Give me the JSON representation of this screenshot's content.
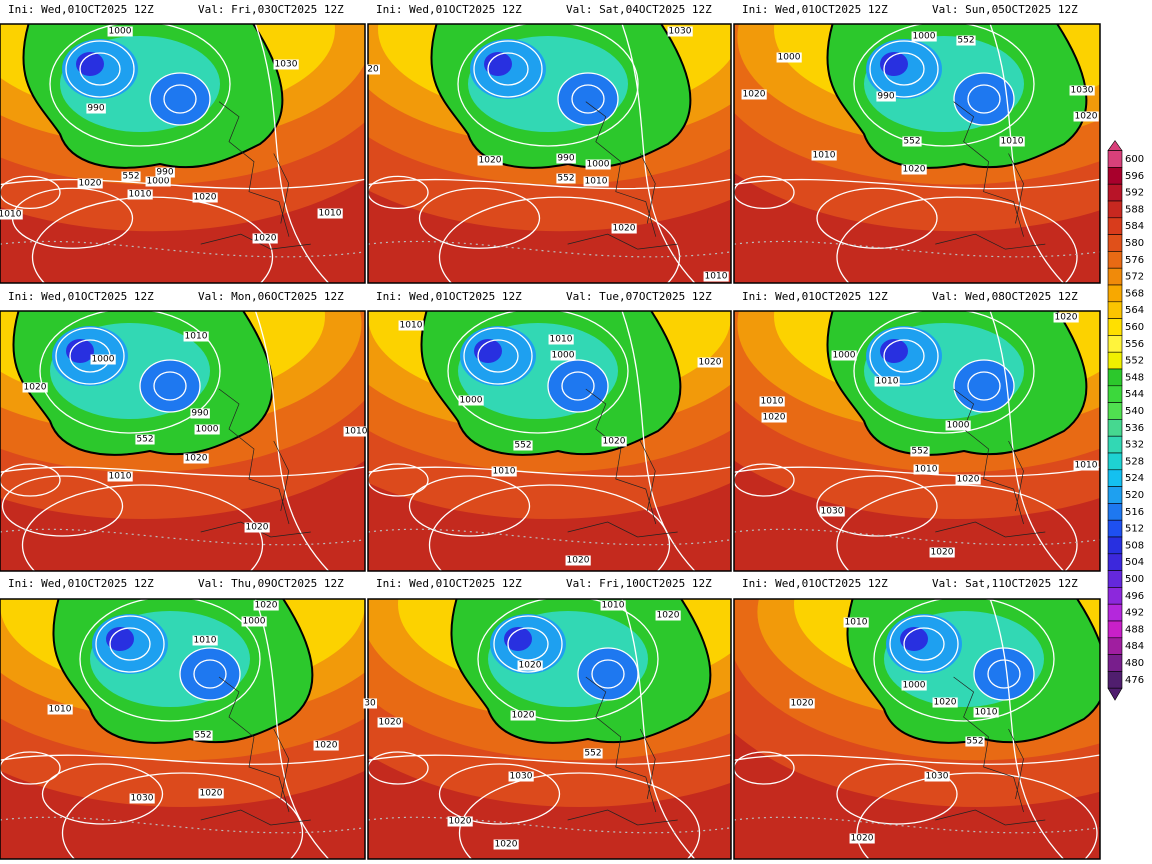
{
  "panels": [
    {
      "ini": "Ini: Wed,01OCT2025 12Z",
      "val": "Val: Fri,03OCT2025 12Z",
      "contour_labels": [
        "1000",
        "990",
        "552",
        "1000",
        "990",
        "1020",
        "1010",
        "1020",
        "1030",
        "1010",
        "1010",
        "1020"
      ]
    },
    {
      "ini": "Ini: Wed,01OCT2025 12Z",
      "val": "Val: Sat,04OCT2025 12Z",
      "contour_labels": [
        "1030",
        "20",
        "990",
        "1000",
        "552",
        "1010",
        "1020",
        "1020",
        "1010"
      ]
    },
    {
      "ini": "Ini: Wed,01OCT2025 12Z",
      "val": "Val: Sun,05OCT2025 12Z",
      "contour_labels": [
        "1000",
        "552",
        "1000",
        "1020",
        "990",
        "1030",
        "1020",
        "552",
        "1010",
        "1010",
        "1020"
      ]
    },
    {
      "ini": "Ini: Wed,01OCT2025 12Z",
      "val": "Val: Mon,06OCT2025 12Z",
      "contour_labels": [
        "1010",
        "1000",
        "1020",
        "990",
        "552",
        "1000",
        "1020",
        "1010",
        "1010",
        "1020"
      ]
    },
    {
      "ini": "Ini: Wed,01OCT2025 12Z",
      "val": "Val: Tue,07OCT2025 12Z",
      "contour_labels": [
        "1010",
        "1010",
        "1000",
        "1000",
        "1020",
        "552",
        "1020",
        "1010",
        "1020"
      ]
    },
    {
      "ini": "Ini: Wed,01OCT2025 12Z",
      "val": "Val: Wed,08OCT2025 12Z",
      "contour_labels": [
        "1020",
        "1000",
        "1010",
        "1010",
        "1020",
        "1000",
        "552",
        "1010",
        "1020",
        "1010",
        "1030",
        "1020"
      ]
    },
    {
      "ini": "Ini: Wed,01OCT2025 12Z",
      "val": "Val: Thu,09OCT2025 12Z",
      "contour_labels": [
        "1020",
        "1000",
        "1010",
        "1010",
        "552",
        "1020",
        "1030",
        "1020"
      ]
    },
    {
      "ini": "Ini: Wed,01OCT2025 12Z",
      "val": "Val: Fri,10OCT2025 12Z",
      "contour_labels": [
        "1010",
        "1020",
        "1020",
        "30",
        "1020",
        "1020",
        "552",
        "1030",
        "1020",
        "1020"
      ]
    },
    {
      "ini": "Ini: Wed,01OCT2025 12Z",
      "val": "Val: Sat,11OCT2025 12Z",
      "contour_labels": [
        "1010",
        "1000",
        "1020",
        "1020",
        "1010",
        "552",
        "1030",
        "1020"
      ]
    }
  ],
  "colorbar": {
    "levels": [
      600,
      596,
      592,
      588,
      584,
      580,
      576,
      572,
      568,
      564,
      560,
      556,
      552,
      548,
      544,
      540,
      536,
      532,
      528,
      524,
      520,
      516,
      512,
      508,
      504,
      500,
      496,
      492,
      488,
      484,
      480,
      476
    ],
    "colors": [
      "#d8407a",
      "#a8002c",
      "#b81428",
      "#c82820",
      "#d83c1c",
      "#e0501a",
      "#e86a14",
      "#f08a0a",
      "#f8a800",
      "#fcc400",
      "#ffe000",
      "#fff43c",
      "#f0f000",
      "#2cc82c",
      "#3cd83c",
      "#50e050",
      "#46d890",
      "#32d8b4",
      "#1ed2d2",
      "#14c0f0",
      "#1ea0f0",
      "#1e78f0",
      "#1e50f0",
      "#2830e0",
      "#3c28dc",
      "#6428dc",
      "#8c28dc",
      "#b428dc",
      "#c820c8",
      "#a01ea0",
      "#781e8c",
      "#501e6e"
    ]
  }
}
